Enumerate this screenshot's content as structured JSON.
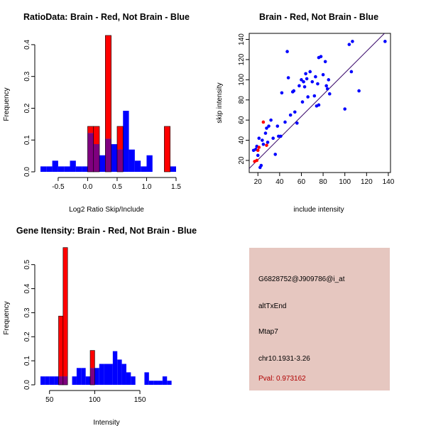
{
  "colors": {
    "red": "#ff0000",
    "blue": "#0000ff",
    "overlap": "#7f007f",
    "panel_bg": "#e6c7c0",
    "pval": "#b00000",
    "fit_line": "#330066"
  },
  "chart_data": [
    {
      "type": "histogram",
      "title": "RatioData: Brain - Red, Not Brain - Blue",
      "xlabel": "Log2 Ratio Skip/Include",
      "ylabel": "Frequency",
      "xlim": [
        -0.8,
        1.5
      ],
      "ylim": [
        0,
        0.44
      ],
      "bin_width": 0.1,
      "xticks": [
        -0.5,
        0.0,
        0.5,
        1.0,
        1.5
      ],
      "xtick_labels": [
        "-0.5",
        "0.0",
        "0.5",
        "1.0",
        "1.5"
      ],
      "yticks": [
        0.0,
        0.1,
        0.2,
        0.3,
        0.4
      ],
      "ytick_labels": [
        "0.0",
        "0.1",
        "0.2",
        "0.3",
        "0.4"
      ],
      "series": [
        {
          "name": "Not Brain",
          "color": "blue",
          "bins": [
            -0.8,
            -0.7,
            -0.6,
            -0.5,
            -0.4,
            -0.3,
            -0.2,
            -0.1,
            0.0,
            0.1,
            0.2,
            0.3,
            0.4,
            0.5,
            0.6,
            0.7,
            0.8,
            0.9,
            1.0,
            1.1,
            1.2,
            1.3,
            1.4
          ],
          "values": [
            0.017,
            0.017,
            0.035,
            0.017,
            0.017,
            0.035,
            0.017,
            0.017,
            0.122,
            0.087,
            0.052,
            0.104,
            0.087,
            0.07,
            0.192,
            0.07,
            0.035,
            0.017,
            0.052,
            0.0,
            0.0,
            0.0,
            0.017
          ]
        },
        {
          "name": "Brain",
          "color": "red",
          "bins": [
            -0.8,
            -0.7,
            -0.6,
            -0.5,
            -0.4,
            -0.3,
            -0.2,
            -0.1,
            0.0,
            0.1,
            0.2,
            0.3,
            0.4,
            0.5,
            0.6,
            0.7,
            0.8,
            0.9,
            1.0,
            1.1,
            1.2,
            1.3,
            1.4
          ],
          "values": [
            0,
            0,
            0,
            0,
            0,
            0,
            0,
            0,
            0.143,
            0.143,
            0.0,
            0.429,
            0.0,
            0.143,
            0.0,
            0.0,
            0.0,
            0.0,
            0.0,
            0.0,
            0.0,
            0.143,
            0.0
          ]
        }
      ]
    },
    {
      "type": "scatter",
      "title": "Brain - Red, Not Brain - Blue",
      "xlabel": "include intensity",
      "ylabel": "skip intensity",
      "xlim": [
        12,
        142
      ],
      "ylim": [
        8,
        146
      ],
      "xticks": [
        20,
        40,
        60,
        80,
        100,
        120,
        140
      ],
      "xtick_labels": [
        "20",
        "40",
        "60",
        "80",
        "100",
        "120",
        "140"
      ],
      "yticks": [
        20,
        40,
        60,
        80,
        100,
        120,
        140
      ],
      "ytick_labels": [
        "20",
        "40",
        "60",
        "80",
        "100",
        "120",
        "140"
      ],
      "fit_line": {
        "x": [
          12,
          142
        ],
        "y": [
          12,
          152
        ]
      },
      "series": [
        {
          "name": "Not Brain",
          "color": "blue",
          "x": [
            16,
            18,
            19,
            20,
            21,
            22,
            23,
            24,
            25,
            27,
            28,
            29,
            30,
            32,
            34,
            36,
            38,
            39,
            41,
            42,
            45,
            47,
            48,
            50,
            52,
            53,
            54,
            56,
            58,
            60,
            61,
            62,
            63,
            64,
            65,
            66,
            68,
            70,
            72,
            73,
            74,
            75,
            76,
            76,
            78,
            80,
            82,
            83,
            84,
            85,
            86,
            100,
            104,
            106,
            107,
            113,
            137
          ],
          "y": [
            30,
            31,
            34,
            25,
            42,
            13,
            15,
            40,
            36,
            47,
            52,
            38,
            54,
            60,
            42,
            26,
            54,
            44,
            44,
            87,
            58,
            128,
            102,
            65,
            88,
            89,
            68,
            57,
            94,
            100,
            78,
            98,
            93,
            106,
            101,
            83,
            108,
            98,
            84,
            103,
            74,
            96,
            75,
            122,
            123,
            105,
            118,
            94,
            91,
            100,
            86,
            71,
            135,
            108,
            138,
            89,
            138
          ]
        },
        {
          "name": "Brain",
          "color": "red",
          "x": [
            17,
            19,
            20,
            21,
            25,
            28
          ],
          "y": [
            19,
            20,
            30,
            33,
            58,
            35
          ]
        }
      ]
    },
    {
      "type": "histogram",
      "title": "Gene Itensity: Brain - Red, Not Brain - Blue",
      "xlabel": "Intensity",
      "ylabel": "Frequency",
      "xlim": [
        40,
        190
      ],
      "ylim": [
        0,
        0.57
      ],
      "bin_width": 5,
      "xticks": [
        50,
        100,
        150
      ],
      "xtick_labels": [
        "50",
        "100",
        "150"
      ],
      "yticks": [
        0.0,
        0.1,
        0.2,
        0.3,
        0.4,
        0.5
      ],
      "ytick_labels": [
        "0.0",
        "0.1",
        "0.2",
        "0.3",
        "0.4",
        "0.5"
      ],
      "series": [
        {
          "name": "Not Brain",
          "color": "blue",
          "bins": [
            40,
            45,
            50,
            55,
            60,
            65,
            70,
            75,
            80,
            85,
            90,
            95,
            100,
            105,
            110,
            115,
            120,
            125,
            130,
            135,
            140,
            145,
            150,
            155,
            160,
            165,
            170,
            175,
            180,
            185
          ],
          "values": [
            0.035,
            0.035,
            0.035,
            0.035,
            0.035,
            0.035,
            0.0,
            0.035,
            0.07,
            0.07,
            0.035,
            0.07,
            0.07,
            0.087,
            0.087,
            0.087,
            0.14,
            0.105,
            0.087,
            0.052,
            0.035,
            0.0,
            0.0,
            0.052,
            0.017,
            0.017,
            0.017,
            0.035,
            0.017,
            0.0
          ]
        },
        {
          "name": "Brain",
          "color": "red",
          "bins": [
            40,
            45,
            50,
            55,
            60,
            65,
            70,
            75,
            80,
            85,
            90,
            95,
            100,
            105,
            110,
            115,
            120,
            125,
            130,
            135,
            140,
            145,
            150,
            155,
            160,
            165,
            170,
            175,
            180,
            185
          ],
          "values": [
            0,
            0,
            0,
            0,
            0.286,
            0.571,
            0,
            0,
            0,
            0,
            0,
            0.143,
            0,
            0,
            0,
            0,
            0,
            0,
            0,
            0,
            0,
            0,
            0,
            0,
            0,
            0,
            0,
            0,
            0,
            0
          ]
        }
      ]
    }
  ],
  "info_panel": {
    "probe_id": "G6828752@J909786@i_at",
    "event_type": "altTxEnd",
    "gene": "Mtap7",
    "location": "chr10.1931-3.26",
    "pval": "Pval: 0.973162"
  }
}
